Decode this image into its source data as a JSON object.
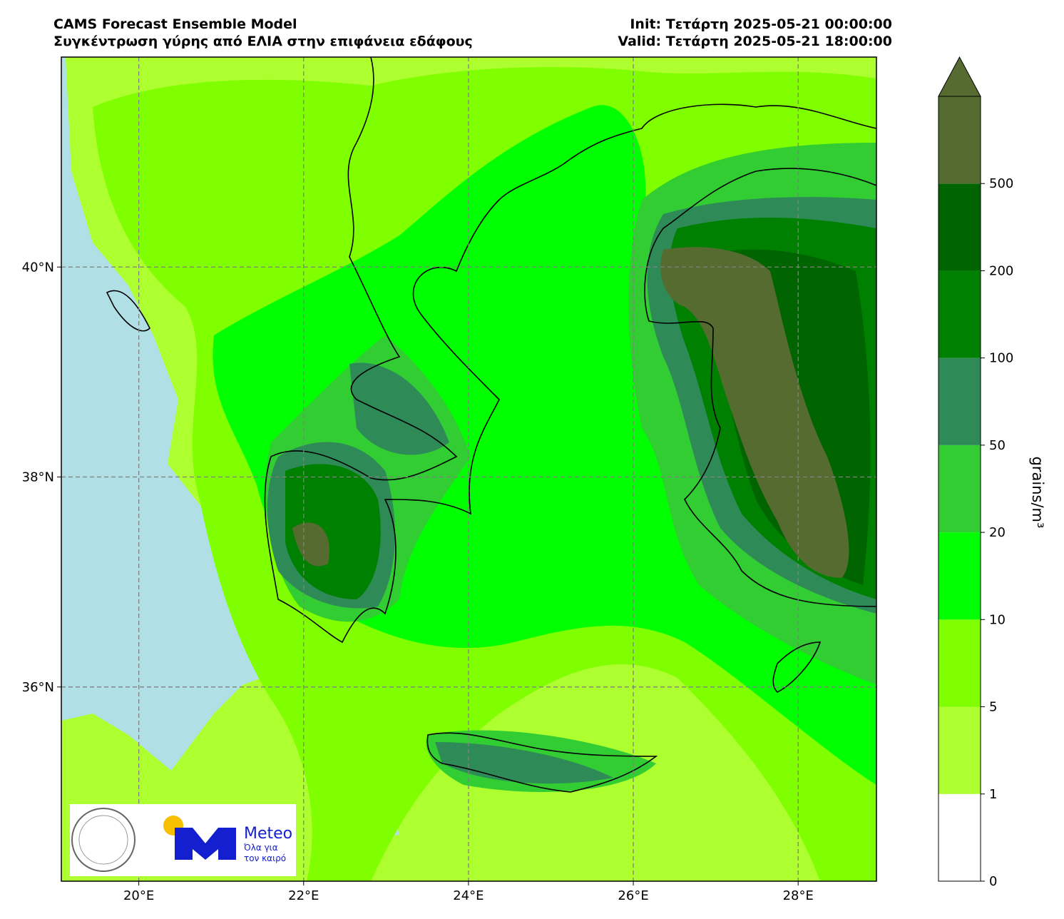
{
  "header": {
    "title": "CAMS Forecast Ensemble Model",
    "subtitle": "Συγκέντρωση γύρης από ΕΛΙΑ στην επιφάνεια εδάφους",
    "init": "Init: Τετάρτη 2025-05-21 00:00:00",
    "valid": "Valid: Τετάρτη 2025-05-21 18:00:00"
  },
  "map": {
    "xlim": [
      19.06,
      28.95
    ],
    "ylim": [
      34.15,
      42.0
    ],
    "xticks": [
      {
        "value": 20,
        "label": "20°E"
      },
      {
        "value": 22,
        "label": "22°E"
      },
      {
        "value": 24,
        "label": "24°E"
      },
      {
        "value": 26,
        "label": "26°E"
      },
      {
        "value": 28,
        "label": "28°E"
      }
    ],
    "yticks": [
      {
        "value": 36,
        "label": "36°N"
      },
      {
        "value": 38,
        "label": "38°N"
      },
      {
        "value": 40,
        "label": "40°N"
      }
    ],
    "grid": true
  },
  "colorbar": {
    "levels": [
      0,
      1,
      5,
      10,
      20,
      50,
      100,
      200,
      500
    ],
    "colors": [
      "#ffffff",
      "#adff2f",
      "#7fff00",
      "#00ff00",
      "#32cd32",
      "#2e8b57",
      "#008000",
      "#006400"
    ],
    "extend_color": "#556b2f",
    "label": "grains/m³"
  },
  "logo": {
    "brand": "Meteo",
    "slogan_1": "Όλα για",
    "slogan_2": "τον καιρό"
  }
}
